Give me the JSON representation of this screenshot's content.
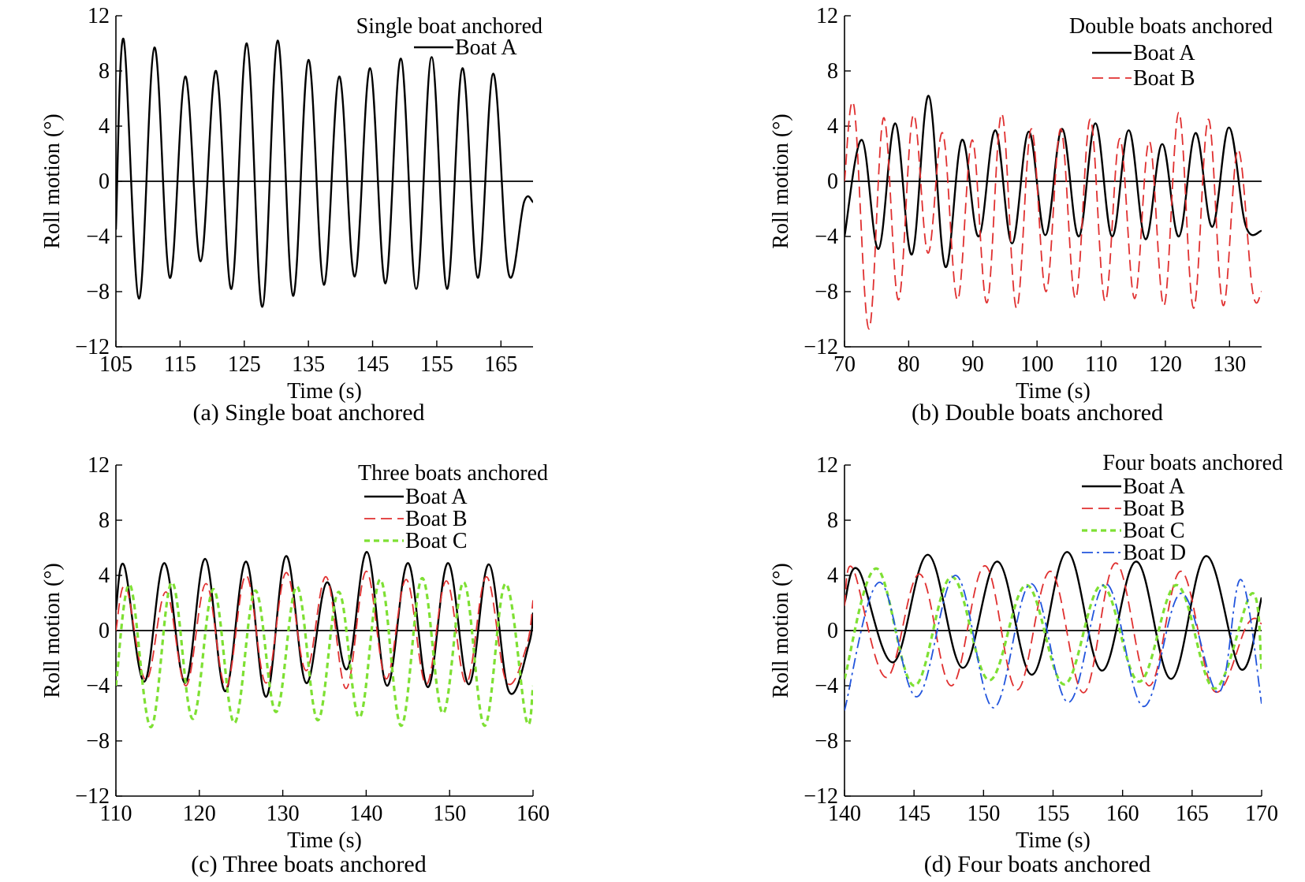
{
  "chart_data": [
    {
      "type": "line",
      "caption": "(a) Single boat anchored",
      "legend_title": "Single boat anchored",
      "xlabel": "Time (s)",
      "ylabel": "Roll motion (°)",
      "xlim": [
        105,
        170
      ],
      "ylim": [
        -12,
        12
      ],
      "xticks": [
        105,
        115,
        125,
        135,
        145,
        155,
        165
      ],
      "yticks": [
        -12,
        -8,
        -4,
        0,
        4,
        8,
        12
      ],
      "grid": false,
      "legend_position": "top-right",
      "series": [
        {
          "name": "Boat A",
          "color": "#000000",
          "style": "solid",
          "x": [
            105,
            106.2,
            108.6,
            111.0,
            113.4,
            115.8,
            118.2,
            120.6,
            123.0,
            125.4,
            127.8,
            130.2,
            132.6,
            135.0,
            137.4,
            139.8,
            142.2,
            144.6,
            147.0,
            149.4,
            151.8,
            154.2,
            156.6,
            159.0,
            161.4,
            163.8,
            166.2,
            168.6,
            170
          ],
          "y": [
            -3.5,
            10.3,
            -8.5,
            9.7,
            -7.0,
            7.6,
            -5.8,
            8.0,
            -7.8,
            10.0,
            -9.1,
            10.2,
            -8.3,
            8.8,
            -7.5,
            7.6,
            -6.9,
            8.2,
            -7.4,
            8.9,
            -7.8,
            9.0,
            -7.8,
            8.2,
            -7.0,
            7.8,
            -6.7,
            -1.5,
            -1.5
          ]
        }
      ]
    },
    {
      "type": "line",
      "caption": "(b) Double boats anchored",
      "legend_title": "Double boats anchored",
      "xlabel": "Time (s)",
      "ylabel": "Roll motion (°)",
      "xlim": [
        70,
        135
      ],
      "ylim": [
        -12,
        12
      ],
      "xticks": [
        70,
        80,
        90,
        100,
        110,
        120,
        130
      ],
      "yticks": [
        -12,
        -8,
        -4,
        0,
        4,
        8,
        12
      ],
      "grid": false,
      "legend_position": "top-right",
      "series": [
        {
          "name": "Boat A",
          "color": "#000000",
          "style": "solid",
          "x": [
            70,
            72.7,
            75.3,
            77.9,
            80.5,
            83.1,
            85.7,
            88.3,
            90.9,
            93.5,
            96.1,
            98.7,
            101.3,
            103.9,
            106.5,
            109.1,
            111.7,
            114.3,
            116.9,
            119.5,
            122.1,
            124.7,
            127.3,
            129.9,
            132.5,
            135
          ],
          "y": [
            -4.0,
            3.0,
            -4.9,
            4.2,
            -5.3,
            6.2,
            -6.2,
            3.0,
            -4.0,
            3.7,
            -4.5,
            3.6,
            -3.9,
            3.8,
            -4.0,
            4.2,
            -4.0,
            3.7,
            -4.2,
            2.7,
            -4.0,
            3.5,
            -3.3,
            3.9,
            -3.2,
            -3.6
          ]
        },
        {
          "name": "Boat B",
          "color": "#e03030",
          "style": "dashed",
          "x": [
            70,
            71.5,
            73.8,
            76.1,
            78.4,
            80.7,
            83.0,
            85.3,
            87.6,
            89.9,
            92.2,
            94.5,
            96.8,
            99.1,
            101.4,
            103.7,
            106.0,
            108.3,
            110.6,
            112.9,
            115.2,
            117.5,
            119.8,
            122.1,
            124.4,
            126.7,
            129.0,
            131.3,
            133.6,
            135
          ],
          "y": [
            0,
            5.4,
            -10.7,
            4.6,
            -8.6,
            4.8,
            -5.2,
            3.5,
            -8.6,
            3.0,
            -8.8,
            4.9,
            -9.2,
            3.8,
            -8.0,
            3.8,
            -8.5,
            4.5,
            -8.7,
            3.1,
            -8.5,
            2.9,
            -9.0,
            5.0,
            -9.2,
            4.5,
            -9.0,
            2.3,
            -8.0,
            -8.0
          ]
        }
      ]
    },
    {
      "type": "line",
      "caption": "(c) Three boats anchored",
      "legend_title": "Three boats anchored",
      "xlabel": "Time (s)",
      "ylabel": "Roll motion (°)",
      "xlim": [
        110,
        160
      ],
      "ylim": [
        -12,
        12
      ],
      "xticks": [
        110,
        120,
        130,
        140,
        150,
        160
      ],
      "yticks": [
        -12,
        -8,
        -4,
        0,
        4,
        8,
        12
      ],
      "grid": false,
      "legend_position": "top-right",
      "series": [
        {
          "name": "Boat A",
          "color": "#000000",
          "style": "solid",
          "x": [
            110,
            111.0,
            113.4,
            115.8,
            118.3,
            120.7,
            123.1,
            125.6,
            128.0,
            130.4,
            132.8,
            135.3,
            137.7,
            140.1,
            142.5,
            145.0,
            147.4,
            149.8,
            152.3,
            154.7,
            157.1,
            159.5,
            160
          ],
          "y": [
            1.5,
            4.7,
            -3.7,
            4.9,
            -3.8,
            5.2,
            -4.4,
            5.0,
            -4.8,
            5.4,
            -3.8,
            3.5,
            -2.8,
            5.7,
            -4.0,
            4.9,
            -4.1,
            4.9,
            -3.9,
            4.8,
            -4.4,
            -1.0,
            1.3
          ]
        },
        {
          "name": "Boat B",
          "color": "#e03030",
          "style": "dashed",
          "x": [
            110,
            111.2,
            113.6,
            116.0,
            118.4,
            120.8,
            123.2,
            125.6,
            128.0,
            130.4,
            132.8,
            135.2,
            137.6,
            140.0,
            142.4,
            144.8,
            147.2,
            149.6,
            152.0,
            154.4,
            156.8,
            159.2,
            160
          ],
          "y": [
            0,
            3.2,
            -3.6,
            2.8,
            -4.0,
            3.4,
            -4.1,
            4.0,
            -3.8,
            4.2,
            -2.9,
            3.9,
            -4.2,
            4.3,
            -3.5,
            3.7,
            -3.9,
            3.6,
            -3.8,
            3.9,
            -3.7,
            -1.2,
            2.2
          ]
        },
        {
          "name": "Boat C",
          "color": "#7ee033",
          "style": "dotted",
          "x": [
            110,
            111.7,
            114.2,
            116.7,
            119.2,
            121.7,
            124.2,
            126.7,
            129.2,
            131.7,
            134.2,
            136.7,
            139.2,
            141.7,
            144.2,
            146.7,
            149.2,
            151.7,
            154.2,
            156.7,
            159.2,
            160
          ],
          "y": [
            -4.0,
            3.3,
            -7.0,
            3.5,
            -6.4,
            3.0,
            -6.7,
            2.9,
            -5.9,
            3.2,
            -6.5,
            2.8,
            -6.3,
            3.7,
            -6.9,
            3.8,
            -6.0,
            3.5,
            -6.9,
            3.4,
            -6.5,
            -4.0
          ]
        }
      ]
    },
    {
      "type": "line",
      "caption": "(d) Four boats anchored",
      "legend_title": "Four boats anchored",
      "xlabel": "Time (s)",
      "ylabel": "Roll motion (°)",
      "xlim": [
        140,
        170
      ],
      "ylim": [
        -12,
        12
      ],
      "xticks": [
        140,
        145,
        150,
        155,
        160,
        165,
        170
      ],
      "yticks": [
        -12,
        -8,
        -4,
        0,
        4,
        8,
        12
      ],
      "grid": false,
      "legend_position": "top-right",
      "series": [
        {
          "name": "Boat A",
          "color": "#000000",
          "style": "solid",
          "x": [
            140,
            141.0,
            143.5,
            146.0,
            148.5,
            151.0,
            153.5,
            156.0,
            158.5,
            161.0,
            163.5,
            166.0,
            168.5,
            170
          ],
          "y": [
            2.0,
            4.4,
            -2.3,
            5.5,
            -2.7,
            5.0,
            -3.2,
            5.7,
            -2.9,
            5.0,
            -3.5,
            5.4,
            -2.8,
            2.4
          ]
        },
        {
          "name": "Boat B",
          "color": "#e03030",
          "style": "dashed",
          "x": [
            140,
            140.6,
            143.0,
            145.4,
            147.7,
            150.1,
            152.4,
            154.8,
            157.2,
            159.5,
            161.9,
            164.2,
            166.6,
            169.0,
            170
          ],
          "y": [
            1.8,
            4.5,
            -3.4,
            4.1,
            -4.0,
            4.7,
            -4.3,
            4.3,
            -4.5,
            4.9,
            -4.0,
            4.3,
            -4.4,
            0.5,
            0.5
          ]
        },
        {
          "name": "Boat C",
          "color": "#7ee033",
          "style": "dotted",
          "x": [
            140,
            142.3,
            145.0,
            147.7,
            150.4,
            153.1,
            155.8,
            158.5,
            161.2,
            163.9,
            166.6,
            169.3,
            170
          ],
          "y": [
            -3.5,
            4.5,
            -4.0,
            3.9,
            -3.6,
            3.3,
            -3.9,
            3.3,
            -3.7,
            3.3,
            -4.2,
            2.7,
            -2.8
          ]
        },
        {
          "name": "Boat D",
          "color": "#2255dd",
          "style": "dashdot",
          "x": [
            140,
            142.5,
            145.2,
            148.0,
            150.7,
            153.4,
            156.1,
            158.8,
            161.5,
            164.2,
            166.9,
            168.5,
            170
          ],
          "y": [
            -5.8,
            3.5,
            -4.8,
            4.0,
            -5.6,
            3.4,
            -5.2,
            3.4,
            -5.5,
            2.7,
            -4.5,
            3.7,
            -5.3
          ]
        }
      ]
    }
  ]
}
